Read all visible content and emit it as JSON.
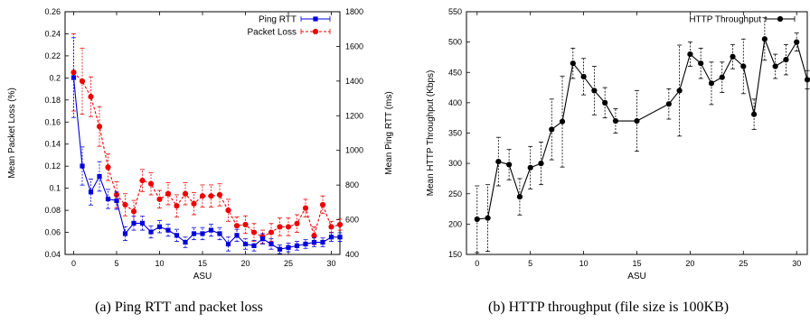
{
  "captions": {
    "a": "(a) Ping RTT and packet loss",
    "b": "(b) HTTP throughput (file size is 100KB)"
  },
  "chart_data": [
    {
      "type": "line",
      "xlabel": "ASU",
      "ylabel": "Mean Packet Loss (%)",
      "y2label": "Mean Ping RTT (ms)",
      "xlim": [
        -1,
        31
      ],
      "ylim": [
        0.04,
        0.26
      ],
      "y2lim": [
        400,
        1800
      ],
      "xticks": [
        0,
        5,
        10,
        15,
        20,
        25,
        30
      ],
      "yticks": [
        "0.04",
        "0.06",
        "0.08",
        "0.1",
        "0.12",
        "0.14",
        "0.16",
        "0.18",
        "0.2",
        "0.22",
        "0.24",
        "0.26"
      ],
      "y2ticks": [
        400,
        600,
        800,
        1000,
        1200,
        1400,
        1600,
        1800
      ],
      "legend_position": "top-right",
      "grid": false,
      "series": [
        {
          "name": "Ping RTT",
          "axis": "right",
          "color": "#0000dd",
          "marker": "square",
          "line": "solid",
          "x": [
            0,
            1,
            2,
            3,
            4,
            5,
            6,
            7,
            8,
            9,
            10,
            11,
            12,
            13,
            14,
            15,
            16,
            17,
            18,
            19,
            20,
            21,
            22,
            23,
            24,
            25,
            26,
            27,
            28,
            29,
            30,
            31
          ],
          "y": [
            1420,
            910,
            760,
            850,
            720,
            710,
            520,
            580,
            580,
            530,
            560,
            540,
            510,
            470,
            520,
            520,
            540,
            520,
            460,
            510,
            460,
            450,
            490,
            460,
            430,
            440,
            450,
            460,
            470,
            470,
            500,
            500
          ],
          "err": [
            230,
            110,
            75,
            85,
            55,
            50,
            40,
            40,
            40,
            35,
            35,
            35,
            35,
            30,
            35,
            35,
            35,
            35,
            40,
            35,
            30,
            30,
            30,
            30,
            25,
            25,
            25,
            25,
            25,
            25,
            25,
            25
          ]
        },
        {
          "name": "Packet Loss",
          "axis": "left",
          "color": "#ee0000",
          "marker": "circle",
          "line": "dashed",
          "x": [
            0,
            1,
            2,
            3,
            4,
            5,
            6,
            7,
            8,
            9,
            10,
            11,
            12,
            13,
            14,
            15,
            16,
            17,
            18,
            19,
            20,
            21,
            22,
            23,
            24,
            25,
            26,
            27,
            28,
            29,
            30,
            31
          ],
          "y": [
            0.205,
            0.197,
            0.183,
            0.156,
            0.119,
            0.094,
            0.085,
            0.079,
            0.107,
            0.104,
            0.09,
            0.095,
            0.084,
            0.095,
            0.086,
            0.093,
            0.093,
            0.094,
            0.08,
            0.066,
            0.067,
            0.06,
            0.056,
            0.06,
            0.065,
            0.065,
            0.068,
            0.082,
            0.057,
            0.085,
            0.065,
            0.067
          ],
          "err": [
            0.035,
            0.03,
            0.018,
            0.018,
            0.012,
            0.012,
            0.01,
            0.01,
            0.01,
            0.01,
            0.008,
            0.01,
            0.01,
            0.01,
            0.01,
            0.01,
            0.01,
            0.01,
            0.01,
            0.008,
            0.008,
            0.008,
            0.006,
            0.008,
            0.008,
            0.008,
            0.008,
            0.008,
            0.008,
            0.008,
            0.005,
            0.005
          ]
        }
      ]
    },
    {
      "type": "line",
      "xlabel": "ASU",
      "ylabel": "Mean HTTP Throughput (Kbps)",
      "xlim": [
        -1,
        31
      ],
      "ylim": [
        150,
        550
      ],
      "xticks": [
        0,
        5,
        10,
        15,
        20,
        25,
        30
      ],
      "yticks": [
        150,
        200,
        250,
        300,
        350,
        400,
        450,
        500,
        550
      ],
      "legend_position": "top-right",
      "grid": false,
      "series": [
        {
          "name": "HTTP Throughput",
          "color": "#000000",
          "marker": "circle",
          "line": "solid",
          "x": [
            0,
            1,
            2,
            3,
            4,
            5,
            6,
            7,
            8,
            9,
            10,
            11,
            12,
            13,
            15,
            18,
            19,
            20,
            21,
            22,
            23,
            24,
            25,
            26,
            27,
            28,
            29,
            30,
            31
          ],
          "y": [
            208,
            210,
            303,
            298,
            245,
            293,
            300,
            356,
            369,
            465,
            443,
            420,
            400,
            370,
            370,
            398,
            420,
            480,
            465,
            432,
            442,
            476,
            460,
            381,
            505,
            460,
            471,
            500,
            438
          ],
          "err": [
            55,
            55,
            40,
            25,
            30,
            35,
            35,
            50,
            75,
            25,
            30,
            40,
            25,
            20,
            50,
            25,
            75,
            20,
            25,
            35,
            25,
            20,
            45,
            25,
            35,
            20,
            25,
            15,
            15
          ]
        }
      ]
    }
  ]
}
